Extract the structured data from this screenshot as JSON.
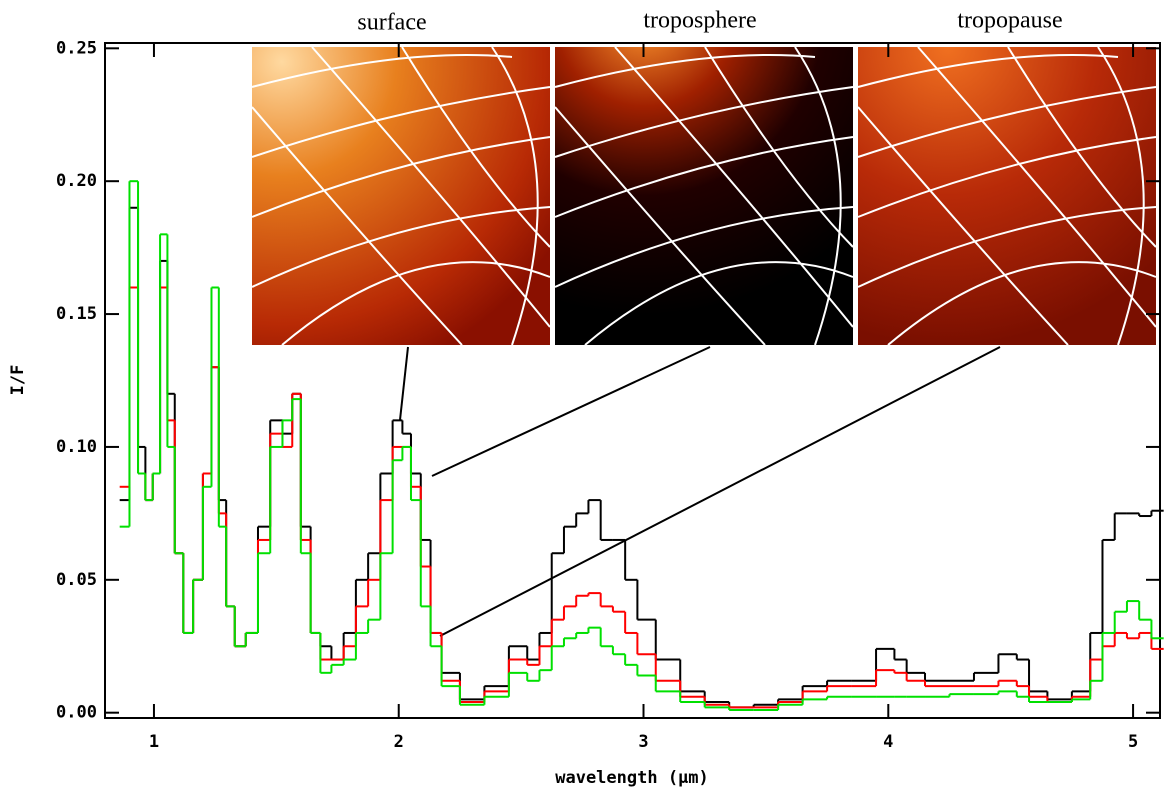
{
  "chart_data": {
    "type": "step",
    "x_label": "wavelength (μm)",
    "y_label": "I/F",
    "annotations": [
      "surface",
      "troposphere",
      "tropopause"
    ],
    "x": [
      0.88,
      0.92,
      0.95,
      0.98,
      1.01,
      1.04,
      1.07,
      1.1,
      1.14,
      1.18,
      1.22,
      1.25,
      1.28,
      1.31,
      1.35,
      1.4,
      1.45,
      1.5,
      1.55,
      1.58,
      1.62,
      1.66,
      1.7,
      1.75,
      1.8,
      1.85,
      1.9,
      1.95,
      2.0,
      2.03,
      2.07,
      2.11,
      2.15,
      2.2,
      2.3,
      2.4,
      2.5,
      2.55,
      2.6,
      2.65,
      2.7,
      2.75,
      2.8,
      2.85,
      2.9,
      2.95,
      3.0,
      3.1,
      3.2,
      3.3,
      3.4,
      3.5,
      3.6,
      3.7,
      3.8,
      3.9,
      4.0,
      4.05,
      4.1,
      4.2,
      4.3,
      4.4,
      4.5,
      4.55,
      4.6,
      4.7,
      4.8,
      4.85,
      4.9,
      4.95,
      5.0,
      5.05,
      5.1
    ],
    "series": [
      {
        "color": "#000000",
        "values": [
          0.08,
          0.19,
          0.1,
          0.08,
          0.09,
          0.17,
          0.12,
          0.06,
          0.03,
          0.05,
          0.09,
          0.13,
          0.08,
          0.04,
          0.025,
          0.03,
          0.07,
          0.11,
          0.105,
          0.12,
          0.07,
          0.03,
          0.025,
          0.02,
          0.03,
          0.05,
          0.06,
          0.09,
          0.11,
          0.105,
          0.09,
          0.065,
          0.03,
          0.015,
          0.005,
          0.01,
          0.025,
          0.02,
          0.03,
          0.06,
          0.07,
          0.075,
          0.08,
          0.065,
          0.065,
          0.05,
          0.035,
          0.02,
          0.008,
          0.004,
          0.002,
          0.003,
          0.005,
          0.01,
          0.012,
          0.012,
          0.024,
          0.02,
          0.015,
          0.012,
          0.012,
          0.015,
          0.022,
          0.02,
          0.008,
          0.005,
          0.008,
          0.03,
          0.065,
          0.075,
          0.075,
          0.074,
          0.076
        ]
      },
      {
        "color": "#ff0000",
        "values": [
          0.085,
          0.16,
          0.09,
          0.08,
          0.09,
          0.16,
          0.11,
          0.06,
          0.03,
          0.05,
          0.09,
          0.13,
          0.075,
          0.04,
          0.025,
          0.03,
          0.065,
          0.105,
          0.1,
          0.12,
          0.065,
          0.03,
          0.02,
          0.02,
          0.025,
          0.04,
          0.05,
          0.08,
          0.1,
          0.1,
          0.085,
          0.055,
          0.03,
          0.012,
          0.004,
          0.008,
          0.02,
          0.018,
          0.025,
          0.035,
          0.04,
          0.044,
          0.045,
          0.04,
          0.038,
          0.03,
          0.022,
          0.012,
          0.006,
          0.003,
          0.002,
          0.002,
          0.004,
          0.008,
          0.01,
          0.01,
          0.016,
          0.015,
          0.012,
          0.01,
          0.01,
          0.01,
          0.012,
          0.01,
          0.006,
          0.004,
          0.006,
          0.02,
          0.025,
          0.03,
          0.028,
          0.03,
          0.024
        ]
      },
      {
        "color": "#00e000",
        "values": [
          0.07,
          0.2,
          0.09,
          0.08,
          0.09,
          0.18,
          0.1,
          0.06,
          0.03,
          0.05,
          0.085,
          0.16,
          0.07,
          0.04,
          0.025,
          0.03,
          0.06,
          0.1,
          0.11,
          0.118,
          0.06,
          0.03,
          0.015,
          0.018,
          0.02,
          0.03,
          0.035,
          0.06,
          0.095,
          0.1,
          0.08,
          0.04,
          0.025,
          0.01,
          0.003,
          0.006,
          0.015,
          0.012,
          0.016,
          0.025,
          0.028,
          0.03,
          0.032,
          0.025,
          0.022,
          0.018,
          0.014,
          0.008,
          0.004,
          0.002,
          0.001,
          0.001,
          0.003,
          0.005,
          0.006,
          0.006,
          0.006,
          0.006,
          0.006,
          0.006,
          0.007,
          0.007,
          0.008,
          0.006,
          0.004,
          0.004,
          0.005,
          0.012,
          0.03,
          0.038,
          0.042,
          0.035,
          0.028
        ]
      }
    ],
    "xlim": [
      0.8,
      5.11
    ],
    "ylim": [
      -0.002,
      0.252
    ],
    "xticks": [
      1,
      2,
      3,
      4,
      5
    ],
    "yticks": [
      {
        "value": 0,
        "label": "0.00"
      },
      0.05,
      {
        "value": 0.1,
        "label": "0.10"
      },
      0.15,
      {
        "value": 0.2,
        "label": "0.20"
      },
      {
        "value": 0.25,
        "label": "0.25"
      }
    ]
  }
}
